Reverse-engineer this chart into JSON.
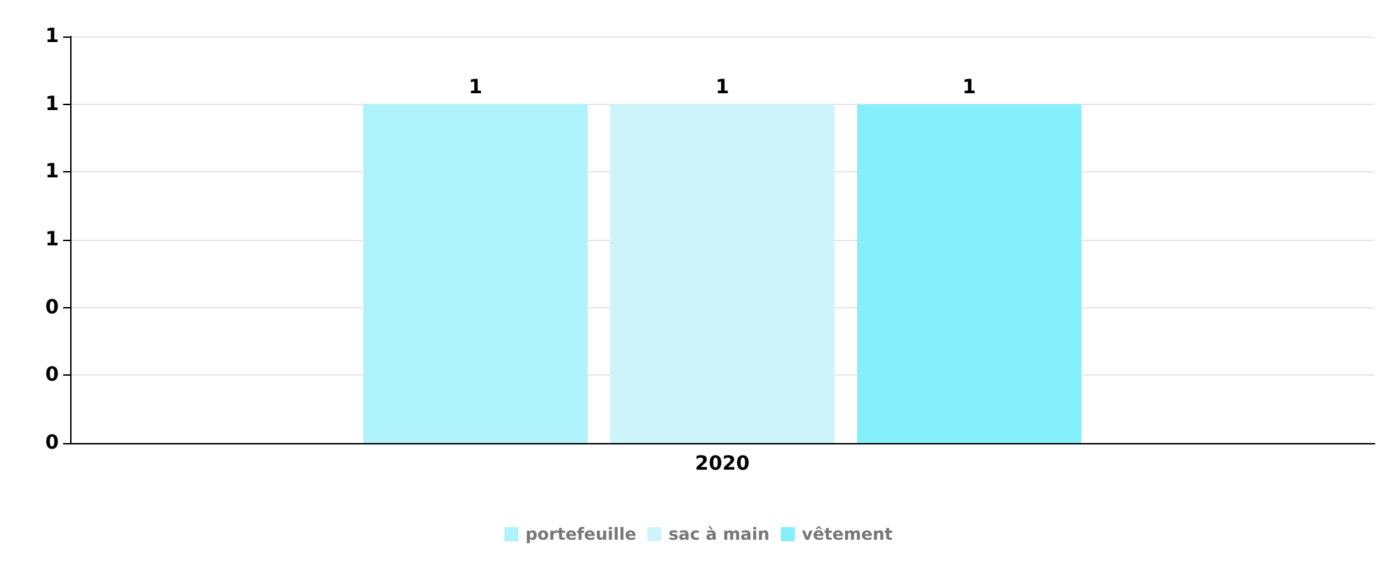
{
  "chart_data": {
    "type": "bar",
    "categories": [
      "2020"
    ],
    "series": [
      {
        "name": "portefeuille",
        "color": "#aef2fb",
        "values": [
          1
        ]
      },
      {
        "name": "sac à main",
        "color": "#cdf3fb",
        "values": [
          1
        ]
      },
      {
        "name": "vêtement",
        "color": "#86effc",
        "values": [
          1
        ]
      }
    ],
    "ylim": [
      0,
      1.2
    ],
    "yticks": [
      {
        "value": 0,
        "label": "0"
      },
      {
        "value": 0.2,
        "label": "0"
      },
      {
        "value": 0.4,
        "label": "0"
      },
      {
        "value": 0.6,
        "label": "1"
      },
      {
        "value": 0.8,
        "label": "1"
      },
      {
        "value": 1,
        "label": "1"
      },
      {
        "value": 1.2,
        "label": "1"
      }
    ],
    "data_labels": true,
    "grid": "y",
    "legend": "bottom"
  }
}
